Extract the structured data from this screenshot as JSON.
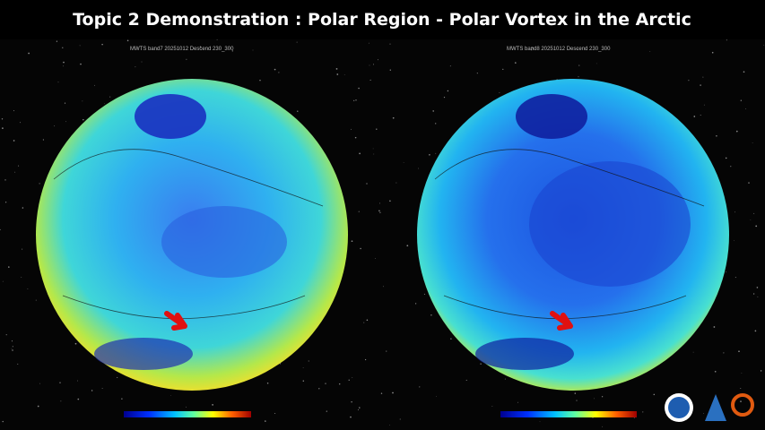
{
  "header": {
    "title": "Topic 2 Demonstration :  Polar Region  - Polar Vortex in the Arctic"
  },
  "panels": [
    {
      "caption": "MWTS band7 20251012 Descend 230_300"
    },
    {
      "caption": "MWTS band8 20251012 Descend 230_300"
    }
  ]
}
